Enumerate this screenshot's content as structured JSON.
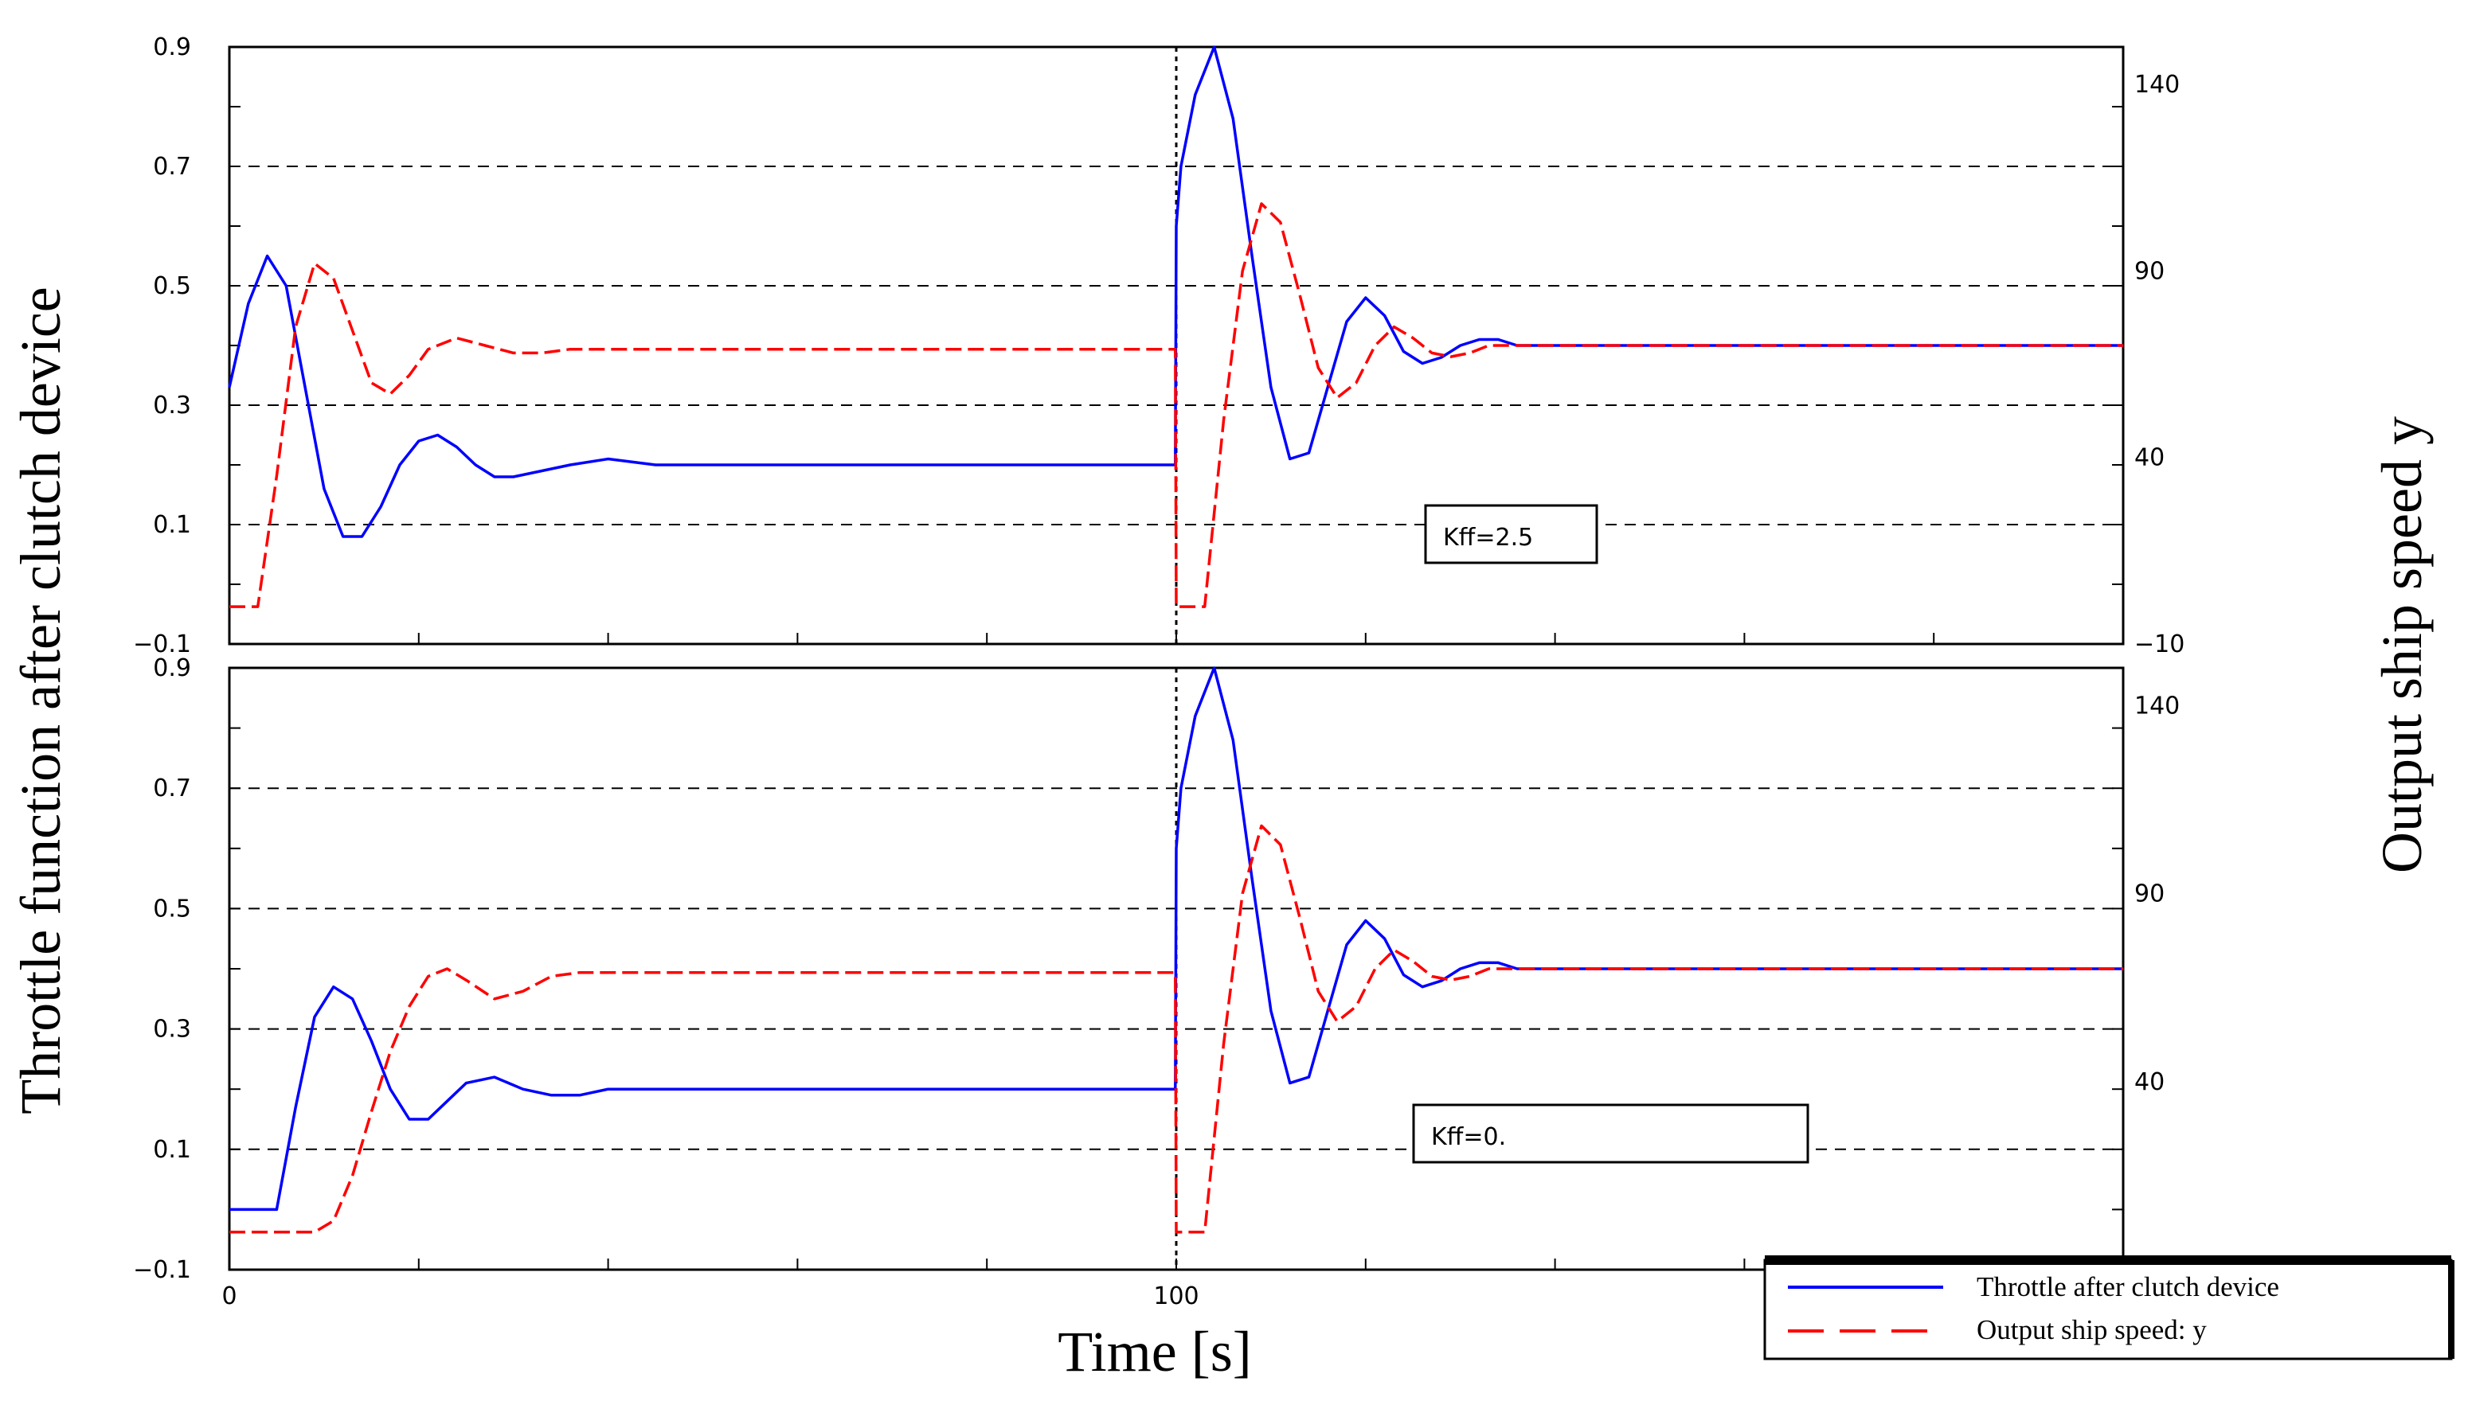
{
  "chart_data": {
    "type": "line",
    "xlabel": "Time [s]",
    "ylabel_left": "Throttle function after clutch device",
    "ylabel_right": "Output ship speed y",
    "xlim": [
      0,
      200
    ],
    "x_tick_labels": [
      "0",
      "100"
    ],
    "legend": {
      "placement": "bottom-right",
      "entries": [
        {
          "label": "Throttle  after  clutch  device",
          "color": "#0000ff",
          "style": "solid"
        },
        {
          "label": "Output  ship  speed:  y",
          "color": "#ff0000",
          "style": "dashed"
        }
      ]
    },
    "grid": "horizontal dashed",
    "panels": [
      {
        "annotation": "Kff=2.5",
        "y_left": {
          "lim": [
            -0.1,
            0.9
          ],
          "tick_labels": [
            "−0.1",
            "0.1",
            "0.3",
            "0.5",
            "0.7",
            "0.9"
          ],
          "ticks": [
            -0.1,
            0.1,
            0.3,
            0.5,
            0.7,
            0.9
          ]
        },
        "y_right": {
          "lim": [
            -10,
            150
          ],
          "tick_labels": [
            "−10",
            "40",
            "90",
            "140"
          ],
          "ticks": [
            -10,
            40,
            90,
            140
          ]
        },
        "series": [
          {
            "name": "Throttle  after  clutch  device",
            "axis": "left",
            "color": "#0000ff",
            "x": [
              0,
              2,
              4,
              6,
              8,
              10,
              12,
              14,
              16,
              18,
              20,
              22,
              24,
              26,
              28,
              30,
              33,
              36,
              40,
              45,
              50,
              60,
              70,
              80,
              99.9,
              100,
              100.5,
              102,
              104,
              106,
              108,
              110,
              112,
              114,
              116,
              118,
              120,
              122,
              124,
              126,
              128,
              130,
              132,
              134,
              136,
              140,
              145,
              150,
              160,
              170,
              180,
              200
            ],
            "y": [
              0.33,
              0.47,
              0.55,
              0.5,
              0.33,
              0.16,
              0.08,
              0.08,
              0.13,
              0.2,
              0.24,
              0.25,
              0.23,
              0.2,
              0.18,
              0.18,
              0.19,
              0.2,
              0.21,
              0.2,
              0.2,
              0.2,
              0.2,
              0.2,
              0.2,
              0.6,
              0.7,
              0.82,
              0.9,
              0.78,
              0.55,
              0.33,
              0.21,
              0.22,
              0.33,
              0.44,
              0.48,
              0.45,
              0.39,
              0.37,
              0.38,
              0.4,
              0.41,
              0.41,
              0.4,
              0.4,
              0.4,
              0.4,
              0.4,
              0.4,
              0.4,
              0.4
            ]
          },
          {
            "name": "Output  ship  speed:  y",
            "axis": "right",
            "color": "#ff0000",
            "x": [
              0,
              2,
              3,
              5,
              7,
              9,
              11,
              13,
              15,
              17,
              19,
              21,
              24,
              27,
              30,
              33,
              36,
              40,
              45,
              50,
              60,
              70,
              80,
              99.9,
              100,
              103,
              104,
              105,
              107,
              109,
              111,
              113,
              115,
              117,
              119,
              121,
              123,
              125,
              127,
              129,
              131,
              133,
              135,
              140,
              145,
              150,
              160,
              170,
              180,
              200
            ],
            "y": [
              0,
              0,
              0,
              35,
              75,
              92,
              88,
              74,
              60,
              57,
              62,
              69,
              72,
              70,
              68,
              68,
              69,
              69,
              69,
              69,
              69,
              69,
              69,
              69,
              0,
              0,
              25,
              50,
              90,
              108,
              103,
              84,
              64,
              56,
              60,
              70,
              75,
              72,
              68,
              67,
              68,
              70,
              70,
              70,
              70,
              70,
              70,
              70,
              70,
              70
            ]
          }
        ]
      },
      {
        "annotation": "Kff=0.",
        "y_left": {
          "lim": [
            -0.1,
            0.9
          ],
          "tick_labels": [
            "−0.1",
            "0.1",
            "0.3",
            "0.5",
            "0.7",
            "0.9"
          ],
          "ticks": [
            -0.1,
            0.1,
            0.3,
            0.5,
            0.7,
            0.9
          ]
        },
        "y_right": {
          "lim": [
            -10,
            150
          ],
          "tick_labels": [
            "40",
            "90",
            "140"
          ],
          "ticks": [
            40,
            90,
            140
          ]
        },
        "series": [
          {
            "name": "Throttle  after  clutch  device",
            "axis": "left",
            "color": "#0000ff",
            "x": [
              0,
              5,
              7,
              9,
              11,
              13,
              15,
              17,
              19,
              21,
              23,
              25,
              28,
              31,
              34,
              37,
              40,
              45,
              50,
              60,
              70,
              80,
              99.9,
              100,
              100.5,
              102,
              104,
              106,
              108,
              110,
              112,
              114,
              116,
              118,
              120,
              122,
              124,
              126,
              128,
              130,
              132,
              134,
              136,
              140,
              145,
              150,
              160,
              170,
              180,
              200
            ],
            "y": [
              0.0,
              0.0,
              0.17,
              0.32,
              0.37,
              0.35,
              0.28,
              0.2,
              0.15,
              0.15,
              0.18,
              0.21,
              0.22,
              0.2,
              0.19,
              0.19,
              0.2,
              0.2,
              0.2,
              0.2,
              0.2,
              0.2,
              0.2,
              0.6,
              0.7,
              0.82,
              0.9,
              0.78,
              0.55,
              0.33,
              0.21,
              0.22,
              0.33,
              0.44,
              0.48,
              0.45,
              0.39,
              0.37,
              0.38,
              0.4,
              0.41,
              0.41,
              0.4,
              0.4,
              0.4,
              0.4,
              0.4,
              0.4,
              0.4,
              0.4
            ]
          },
          {
            "name": "Output  ship  speed:  y",
            "axis": "right",
            "color": "#ff0000",
            "x": [
              0,
              5,
              9,
              11,
              13,
              15,
              17,
              19,
              21,
              23,
              25,
              28,
              31,
              34,
              37,
              40,
              45,
              50,
              60,
              70,
              80,
              99.9,
              100,
              103,
              104,
              105,
              107,
              109,
              111,
              113,
              115,
              117,
              119,
              121,
              123,
              125,
              127,
              129,
              131,
              133,
              135,
              140,
              145,
              150,
              160,
              170,
              180,
              200
            ],
            "y": [
              0,
              0,
              0,
              3,
              15,
              32,
              48,
              60,
              68,
              70,
              67,
              62,
              64,
              68,
              69,
              69,
              69,
              69,
              69,
              69,
              69,
              69,
              0,
              0,
              25,
              50,
              90,
              108,
              103,
              84,
              64,
              56,
              60,
              70,
              75,
              72,
              68,
              67,
              68,
              70,
              70,
              70,
              70,
              70,
              70,
              70,
              70,
              70
            ]
          }
        ]
      }
    ]
  }
}
